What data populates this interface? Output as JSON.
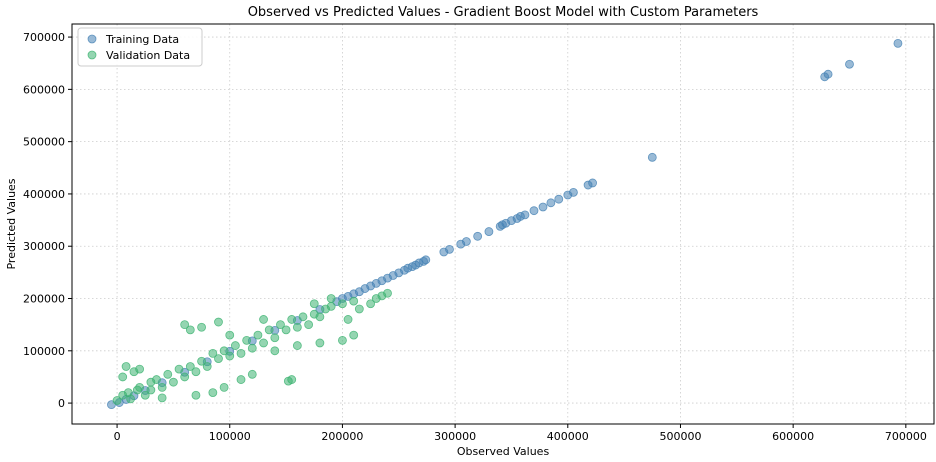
{
  "chart_data": {
    "type": "scatter",
    "title": "Observed vs Predicted Values - Gradient Boost Model with Custom Parameters",
    "xlabel": "Observed Values",
    "ylabel": "Predicted Values",
    "xlim": [
      -40000,
      725000
    ],
    "ylim": [
      -40000,
      725000
    ],
    "xticks": [
      0,
      100000,
      200000,
      300000,
      400000,
      500000,
      600000,
      700000
    ],
    "yticks": [
      0,
      100000,
      200000,
      300000,
      400000,
      500000,
      600000,
      700000
    ],
    "grid": true,
    "legend_position": "top-left",
    "series": [
      {
        "name": "Training Data",
        "color": "#4682b4",
        "points": [
          [
            -5000,
            -3000
          ],
          [
            2000,
            1000
          ],
          [
            8000,
            7000
          ],
          [
            15000,
            14000
          ],
          [
            25000,
            24000
          ],
          [
            40000,
            39000
          ],
          [
            60000,
            59000
          ],
          [
            80000,
            79000
          ],
          [
            100000,
            99000
          ],
          [
            120000,
            119000
          ],
          [
            140000,
            139000
          ],
          [
            160000,
            158000
          ],
          [
            180000,
            179000
          ],
          [
            195000,
            194000
          ],
          [
            200000,
            200000
          ],
          [
            205000,
            204000
          ],
          [
            210000,
            209000
          ],
          [
            215000,
            213000
          ],
          [
            220000,
            219000
          ],
          [
            225000,
            224000
          ],
          [
            230000,
            229000
          ],
          [
            235000,
            234000
          ],
          [
            240000,
            239000
          ],
          [
            245000,
            244000
          ],
          [
            250000,
            249000
          ],
          [
            255000,
            254000
          ],
          [
            258000,
            258000
          ],
          [
            262000,
            261000
          ],
          [
            265000,
            264000
          ],
          [
            268000,
            268000
          ],
          [
            272000,
            271000
          ],
          [
            274000,
            274000
          ],
          [
            290000,
            289000
          ],
          [
            295000,
            294000
          ],
          [
            305000,
            304000
          ],
          [
            310000,
            309000
          ],
          [
            320000,
            319000
          ],
          [
            330000,
            328000
          ],
          [
            340000,
            338000
          ],
          [
            342000,
            341000
          ],
          [
            345000,
            344000
          ],
          [
            350000,
            349000
          ],
          [
            355000,
            353000
          ],
          [
            358000,
            357000
          ],
          [
            362000,
            360000
          ],
          [
            370000,
            368000
          ],
          [
            378000,
            375000
          ],
          [
            385000,
            383000
          ],
          [
            392000,
            390000
          ],
          [
            400000,
            398000
          ],
          [
            405000,
            403000
          ],
          [
            418000,
            417000
          ],
          [
            422000,
            421000
          ],
          [
            475000,
            470000
          ],
          [
            628000,
            624000
          ],
          [
            631000,
            629000
          ],
          [
            650000,
            648000
          ],
          [
            693000,
            688000
          ]
        ]
      },
      {
        "name": "Validation Data",
        "color": "#3cb371",
        "points": [
          [
            0,
            5000
          ],
          [
            5000,
            15000
          ],
          [
            10000,
            20000
          ],
          [
            12000,
            8000
          ],
          [
            18000,
            25000
          ],
          [
            20000,
            30000
          ],
          [
            25000,
            15000
          ],
          [
            30000,
            40000
          ],
          [
            35000,
            45000
          ],
          [
            40000,
            30000
          ],
          [
            45000,
            55000
          ],
          [
            50000,
            40000
          ],
          [
            55000,
            65000
          ],
          [
            60000,
            50000
          ],
          [
            65000,
            70000
          ],
          [
            70000,
            60000
          ],
          [
            75000,
            80000
          ],
          [
            80000,
            70000
          ],
          [
            85000,
            95000
          ],
          [
            90000,
            85000
          ],
          [
            95000,
            100000
          ],
          [
            100000,
            90000
          ],
          [
            105000,
            110000
          ],
          [
            110000,
            95000
          ],
          [
            115000,
            120000
          ],
          [
            120000,
            105000
          ],
          [
            125000,
            130000
          ],
          [
            130000,
            115000
          ],
          [
            135000,
            140000
          ],
          [
            140000,
            125000
          ],
          [
            145000,
            150000
          ],
          [
            150000,
            140000
          ],
          [
            155000,
            160000
          ],
          [
            160000,
            145000
          ],
          [
            165000,
            165000
          ],
          [
            170000,
            150000
          ],
          [
            175000,
            170000
          ],
          [
            180000,
            165000
          ],
          [
            185000,
            180000
          ],
          [
            190000,
            185000
          ],
          [
            200000,
            190000
          ],
          [
            210000,
            195000
          ],
          [
            215000,
            180000
          ],
          [
            225000,
            190000
          ],
          [
            230000,
            200000
          ],
          [
            235000,
            205000
          ],
          [
            240000,
            210000
          ],
          [
            152000,
            42000
          ],
          [
            155000,
            45000
          ],
          [
            120000,
            55000
          ],
          [
            95000,
            30000
          ],
          [
            110000,
            45000
          ],
          [
            70000,
            15000
          ],
          [
            85000,
            20000
          ],
          [
            60000,
            150000
          ],
          [
            65000,
            140000
          ],
          [
            75000,
            145000
          ],
          [
            90000,
            155000
          ],
          [
            100000,
            130000
          ],
          [
            130000,
            160000
          ],
          [
            140000,
            100000
          ],
          [
            160000,
            110000
          ],
          [
            180000,
            115000
          ],
          [
            200000,
            120000
          ],
          [
            210000,
            130000
          ],
          [
            205000,
            160000
          ],
          [
            190000,
            200000
          ],
          [
            175000,
            190000
          ],
          [
            5000,
            50000
          ],
          [
            8000,
            70000
          ],
          [
            15000,
            60000
          ],
          [
            20000,
            65000
          ],
          [
            30000,
            25000
          ],
          [
            40000,
            10000
          ]
        ]
      }
    ]
  }
}
